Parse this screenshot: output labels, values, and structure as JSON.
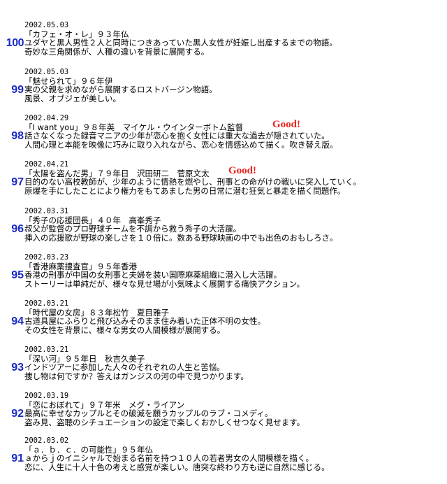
{
  "entries": [
    {
      "number": "100",
      "date": "2002.05.03",
      "title": "「カフェ・オ・レ」９３年仏",
      "lines": [
        "ユダヤと黒人男性２人と同時につきあっていた黒人女性が妊娠し出産するまでの物語。",
        "奇妙な三角関係が、人種の違いを背景に展開する。"
      ],
      "badge": ""
    },
    {
      "number": "99",
      "date": "2002.05.03",
      "title": "「魅せられて」９６年伊",
      "lines": [
        "実の父親を求めながら展開するロストバージン物語。",
        "風景、オブジェが美しい。"
      ],
      "badge": ""
    },
    {
      "number": "98",
      "date": "2002.04.29",
      "title": "「I want you」９８年英　マイケル・ウインターボトム監督",
      "lines": [
        "話さなくなった録音マニアの少年が恋心を抱く女性には重大な過去が隠されていた。",
        "人間心理と本能を映像に巧みに取り入れながら、恋心を情感込めて描く。吹き替え版。"
      ],
      "badge": "Good!"
    },
    {
      "number": "97",
      "date": "2002.04.21",
      "title": "「太陽を盗んだ男」７９年日　沢田研二　菅原文太",
      "lines": [
        "目的のない高校教師が、少年のように情熱を燃やし、刑事との命がけの戦いに突入していく。",
        "原爆を手にしたことにより権力をもてあました男の日常に潜む狂気と暴走を描く問題作。"
      ],
      "badge": "Good!"
    },
    {
      "number": "96",
      "date": "2002.03.31",
      "title": "「秀子の応援団長」４０年　高峯秀子",
      "lines": [
        "叔父が監督のプロ野球チームを不調から救う秀子の大活躍。",
        "挿入の応援歌が野球の楽しさを１０倍に。数ある野球映画の中でも出色のおもしろさ。"
      ],
      "badge": ""
    },
    {
      "number": "95",
      "date": "2002.03.23",
      "title": "「香港麻薬捜査官」９５年香港",
      "lines": [
        "香港の刑事が中国の女刑事と夫婦を装い国際麻薬組織に潜入し大活躍。",
        "ストーリーは単純だが、様々な見せ場が小気味よく展開する痛快アクション。"
      ],
      "badge": ""
    },
    {
      "number": "94",
      "date": "2002.03.21",
      "title": "「時代屋の女房」８３年松竹　夏目雅子",
      "lines": [
        "古道具屋にふらりと飛び込みそのまま住み着いた正体不明の女性。",
        "その女性を背景に、様々な男女の人間模様が展開する。"
      ],
      "badge": ""
    },
    {
      "number": "93",
      "date": "2002.03.21",
      "title": "「深い河」９５年日　秋吉久美子",
      "lines": [
        "インドツアーに参加した人々のそれぞれの人生と苦悩。",
        "捜し物は何ですか？答えはガンジスの河の中で見つかります。"
      ],
      "badge": ""
    },
    {
      "number": "92",
      "date": "2002.03.19",
      "title": "「恋におぼれて」９７年米　メグ・ライアン",
      "lines": [
        "最高に幸せなカップルとその破滅を願うカップルのラブ・コメディ。",
        "盗み見、盗聴のシチュエーションの設定で楽しくおかしくせつなく見せます。"
      ],
      "badge": ""
    },
    {
      "number": "91",
      "date": "2002.03.02",
      "title": "「ａ．ｂ．ｃ．の可能性」９５年仏",
      "lines": [
        "ａからｊのイニシャルで始まる名前を持つ１０人の若者男女の人間模様を描く。",
        "恋に、人生に十人十色の考えと感覚が楽しい。唐突な終わり方も逆に自然に感じる。"
      ],
      "badge": ""
    }
  ]
}
